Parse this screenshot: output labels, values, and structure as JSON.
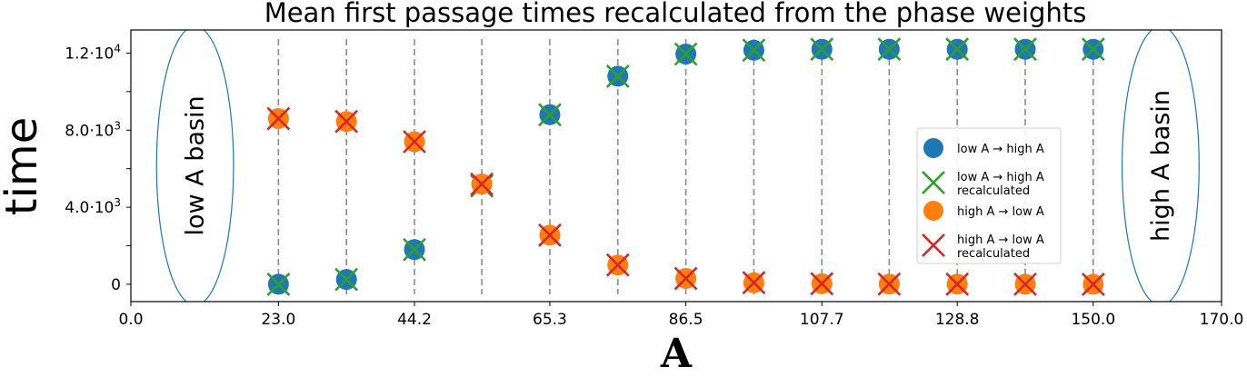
{
  "chart_data": {
    "type": "scatter",
    "title": "Mean first passage times recalculated from the phase weights",
    "xlabel": "A",
    "ylabel": "time",
    "xlim": [
      0,
      170
    ],
    "ylim": [
      -900,
      13200
    ],
    "x_ticks": [
      {
        "value": 0,
        "label": "0.0"
      },
      {
        "value": 23,
        "label": "23.0"
      },
      {
        "value": 44.2,
        "label": "44.2"
      },
      {
        "value": 65.3,
        "label": "65.3"
      },
      {
        "value": 86.5,
        "label": "86.5"
      },
      {
        "value": 107.7,
        "label": "107.7"
      },
      {
        "value": 128.8,
        "label": "128.8"
      },
      {
        "value": 150,
        "label": "150.0"
      },
      {
        "value": 170,
        "label": "170.0"
      }
    ],
    "y_ticks": [
      {
        "value": 0,
        "label": "0",
        "exp": ""
      },
      {
        "value": 2000,
        "label": "",
        "exp": ""
      },
      {
        "value": 4000,
        "label": "4.0·10",
        "exp": "3"
      },
      {
        "value": 6000,
        "label": "",
        "exp": ""
      },
      {
        "value": 8000,
        "label": "8.0·10",
        "exp": "3"
      },
      {
        "value": 10000,
        "label": "",
        "exp": ""
      },
      {
        "value": 12000,
        "label": "1.2·10",
        "exp": "4"
      }
    ],
    "x": [
      23.0,
      33.6,
      44.2,
      54.7,
      65.3,
      75.9,
      86.5,
      97.1,
      107.7,
      118.2,
      128.8,
      139.4,
      150.0
    ],
    "vlines": [
      23.0,
      33.6,
      44.2,
      54.7,
      65.3,
      75.9,
      86.5,
      97.1,
      107.7,
      118.2,
      128.8,
      139.4,
      150.0
    ],
    "series": [
      {
        "name": "low A → high A",
        "marker": "circle",
        "color": "#1f77b4",
        "values": [
          0,
          250,
          1800,
          5200,
          8800,
          10800,
          11950,
          12150,
          12200,
          12200,
          12200,
          12200,
          12200
        ]
      },
      {
        "name": "low A → high A recalculated",
        "marker": "x",
        "color": "#2ca02c",
        "values": [
          0,
          250,
          1800,
          5100,
          8800,
          10800,
          11950,
          12150,
          12200,
          12200,
          12200,
          12200,
          12200
        ]
      },
      {
        "name": "high A → low A",
        "marker": "circle",
        "color": "#ff7f0e",
        "values": [
          8600,
          8450,
          7400,
          5200,
          2550,
          1000,
          300,
          80,
          30,
          10,
          5,
          2,
          0
        ]
      },
      {
        "name": "high A → low A recalculated",
        "marker": "x",
        "color": "#d62728",
        "values": [
          8600,
          8450,
          7400,
          5200,
          2550,
          1000,
          300,
          80,
          30,
          10,
          5,
          2,
          0
        ]
      }
    ],
    "legend": {
      "placement": "center-right",
      "entries": [
        {
          "lines": [
            "low A → high A"
          ],
          "marker": "circle",
          "color": "#1f77b4"
        },
        {
          "lines": [
            "low A → high A",
            "recalculated"
          ],
          "marker": "x",
          "color": "#2ca02c"
        },
        {
          "lines": [
            "high A → low A"
          ],
          "marker": "circle",
          "color": "#ff7f0e"
        },
        {
          "lines": [
            "high A → low A",
            "recalculated"
          ],
          "marker": "x",
          "color": "#d62728"
        }
      ]
    },
    "annotations": [
      {
        "text": "low A basin",
        "x_center": 10,
        "x_halfwidth": 6.0,
        "color": "#1f77b4"
      },
      {
        "text": "high A basin",
        "x_center": 160.5,
        "x_halfwidth": 6.0,
        "color": "#1f77b4"
      }
    ],
    "grid": false,
    "vline_color": "#8c8c8c"
  }
}
